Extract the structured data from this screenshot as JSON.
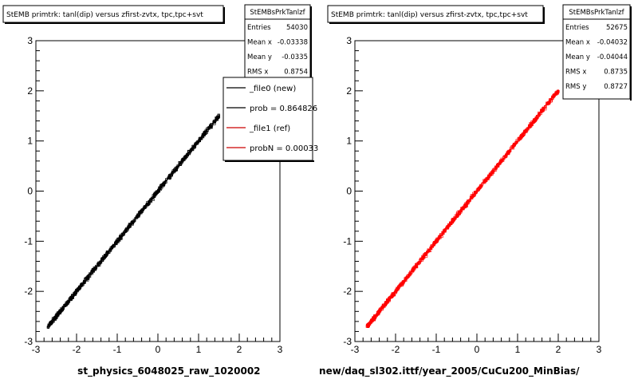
{
  "chart_data": [
    {
      "type": "scatter",
      "title": "StEMB primtrk: tanl(dip) versus zfirst-zvtx, tpc,tpc+svt",
      "xlabel": "st_physics_6048025_raw_1020002",
      "ylabel": "",
      "xlim": [
        -3,
        3
      ],
      "ylim": [
        -3,
        3
      ],
      "x_ticks": [
        "-3",
        "-2",
        "-1",
        "0",
        "1",
        "2",
        "3"
      ],
      "y_ticks": [
        "-3",
        "-2",
        "-1",
        "0",
        "1",
        "2",
        "3"
      ],
      "grid": false,
      "color": "#000000",
      "series": [
        {
          "x": [
            -2.7,
            -2.4,
            -2.0,
            -1.5,
            -1.0,
            -0.5,
            0.0,
            0.5,
            1.0,
            1.5
          ],
          "y": [
            -2.7,
            -2.4,
            -2.0,
            -1.5,
            -1.0,
            -0.5,
            0.0,
            0.5,
            1.0,
            1.5
          ]
        }
      ],
      "stats": {
        "title": "StEMBsPrkTanlzf",
        "rows": [
          {
            "label": "Entries",
            "value": "54030"
          },
          {
            "label": "Mean x",
            "value": "-0.03338"
          },
          {
            "label": "Mean y",
            "value": "-0.0335"
          },
          {
            "label": "RMS x",
            "value": "0.8754"
          }
        ]
      },
      "legend": {
        "placement": "top-right",
        "entries": [
          {
            "label": "_file0 (new)",
            "color": "#000000"
          },
          {
            "label": "prob = 0.864826",
            "color": "#000000"
          },
          {
            "label": "_file1 (ref)",
            "color": "#cc0000"
          },
          {
            "label": "probN = 0.00033",
            "color": "#cc0000"
          }
        ]
      }
    },
    {
      "type": "scatter",
      "title": "StEMB primtrk: tanl(dip) versus zfirst-zvtx, tpc,tpc+svt",
      "xlabel": "new/daq_sl302.ittf/year_2005/CuCu200_MinBias/",
      "ylabel": "",
      "xlim": [
        -3,
        3
      ],
      "ylim": [
        -3,
        3
      ],
      "x_ticks": [
        "-3",
        "-2",
        "-1",
        "0",
        "1",
        "2",
        "3"
      ],
      "y_ticks": [
        "-3",
        "-2",
        "-1",
        "0",
        "1",
        "2",
        "3"
      ],
      "grid": false,
      "color": "#ff0000",
      "series": [
        {
          "x": [
            -2.7,
            -2.4,
            -2.0,
            -1.5,
            -1.0,
            -0.5,
            0.0,
            0.5,
            1.0,
            1.5,
            2.0
          ],
          "y": [
            -2.7,
            -2.4,
            -2.0,
            -1.5,
            -1.0,
            -0.5,
            0.0,
            0.5,
            1.0,
            1.5,
            2.0
          ]
        }
      ],
      "stats": {
        "title": "StEMBsPrkTanlzf",
        "rows": [
          {
            "label": "Entries",
            "value": "52675"
          },
          {
            "label": "Mean x",
            "value": "-0.04032"
          },
          {
            "label": "Mean y",
            "value": "-0.04044"
          },
          {
            "label": "RMS x",
            "value": "0.8735"
          },
          {
            "label": "RMS y",
            "value": "0.8727"
          }
        ]
      }
    }
  ]
}
